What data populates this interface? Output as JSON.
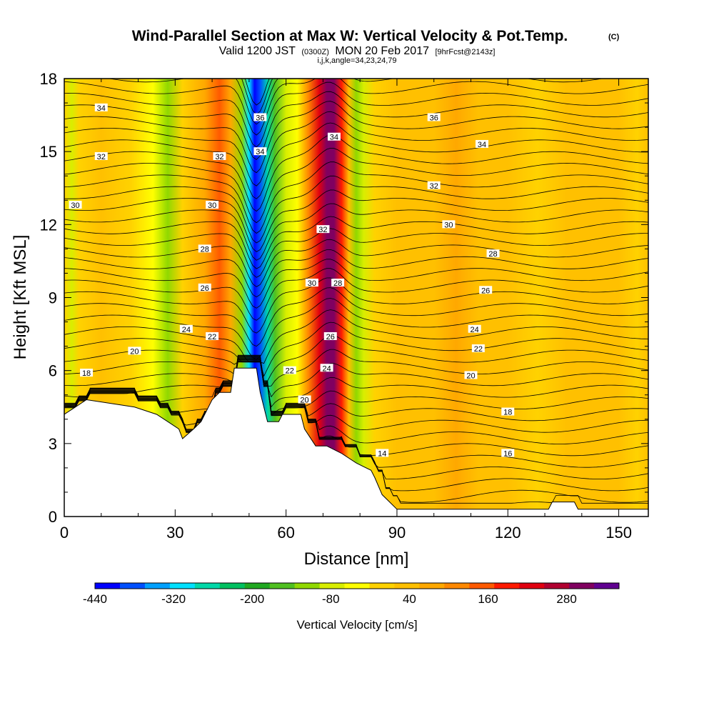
{
  "chart_data": {
    "type": "heatmap",
    "title": "Wind-Parallel Section at Max W: Vertical Velocity & Pot.Temp.",
    "title_unit": "(C)",
    "subtitle": {
      "valid_prefix": "Valid 1200 JST",
      "utc": "(0300Z)",
      "date": "MON 20 Feb 2017",
      "forecast": "[9hrFcst@2143z]"
    },
    "info_line": "i,j,k,angle=34,23,24,79",
    "xlabel": "Distance [nm]",
    "ylabel": "Height [Kft MSL]",
    "xlim": [
      0,
      158
    ],
    "ylim": [
      0,
      18
    ],
    "x_ticks": [
      "0",
      "30",
      "60",
      "90",
      "120",
      "150"
    ],
    "x_tick_values": [
      0,
      30,
      60,
      90,
      120,
      150
    ],
    "y_ticks": [
      "0",
      "3",
      "6",
      "9",
      "12",
      "15",
      "18"
    ],
    "y_tick_values": [
      0,
      3,
      6,
      9,
      12,
      15,
      18
    ],
    "colorbar": {
      "title": "Vertical Velocity [cm/s]",
      "min": -440,
      "max": 360,
      "step": 40,
      "labels": [
        "-440",
        "-320",
        "-200",
        "-80",
        "40",
        "160",
        "280"
      ],
      "label_values": [
        -440,
        -320,
        -200,
        -80,
        40,
        160,
        280
      ],
      "colors": [
        "#0000ff",
        "#0050ff",
        "#00a0ff",
        "#00e0ff",
        "#00d8a8",
        "#00c060",
        "#20a820",
        "#50c020",
        "#90d800",
        "#d8ee00",
        "#ffff00",
        "#ffd200",
        "#ffc000",
        "#ffa800",
        "#ff8800",
        "#ff5a00",
        "#ff1a00",
        "#e00010",
        "#b00030",
        "#800060",
        "#600090"
      ]
    },
    "vertical_velocity_columns": [
      {
        "x": 0,
        "w": 20
      },
      {
        "x": 2,
        "w": -60
      },
      {
        "x": 4,
        "w": 20
      },
      {
        "x": 10,
        "w": 40
      },
      {
        "x": 18,
        "w": 20
      },
      {
        "x": 24,
        "w": -40
      },
      {
        "x": 28,
        "w": -120
      },
      {
        "x": 32,
        "w": 20
      },
      {
        "x": 38,
        "w": 80
      },
      {
        "x": 42,
        "w": 160
      },
      {
        "x": 45,
        "w": 80
      },
      {
        "x": 48,
        "w": -100
      },
      {
        "x": 50,
        "w": -300
      },
      {
        "x": 51.5,
        "w": -420
      },
      {
        "x": 53,
        "w": -400
      },
      {
        "x": 55,
        "w": -260
      },
      {
        "x": 57,
        "w": -150
      },
      {
        "x": 60,
        "w": -60
      },
      {
        "x": 63,
        "w": -20
      },
      {
        "x": 66,
        "w": 120
      },
      {
        "x": 69,
        "w": 240
      },
      {
        "x": 71,
        "w": 320
      },
      {
        "x": 73,
        "w": 330
      },
      {
        "x": 75,
        "w": 200
      },
      {
        "x": 77,
        "w": 60
      },
      {
        "x": 79,
        "w": -120
      },
      {
        "x": 81,
        "w": -80
      },
      {
        "x": 84,
        "w": 20
      },
      {
        "x": 90,
        "w": 40
      },
      {
        "x": 100,
        "w": 60
      },
      {
        "x": 106,
        "w": 90
      },
      {
        "x": 112,
        "w": 50
      },
      {
        "x": 120,
        "w": 40
      },
      {
        "x": 128,
        "w": 20
      },
      {
        "x": 136,
        "w": 40
      },
      {
        "x": 143,
        "w": 60
      },
      {
        "x": 150,
        "w": 40
      },
      {
        "x": 155,
        "w": 20
      },
      {
        "x": 158,
        "w": 40
      }
    ],
    "terrain": [
      [
        0,
        4.2
      ],
      [
        3,
        4.5
      ],
      [
        6,
        4.8
      ],
      [
        19,
        4.5
      ],
      [
        25,
        4.2
      ],
      [
        28,
        3.9
      ],
      [
        31,
        3.6
      ],
      [
        32,
        3.2
      ],
      [
        35,
        3.6
      ],
      [
        37,
        3.9
      ],
      [
        40,
        4.8
      ],
      [
        42,
        5.1
      ],
      [
        45,
        5.1
      ],
      [
        46,
        6.1
      ],
      [
        52,
        6.1
      ],
      [
        53,
        5.1
      ],
      [
        55,
        3.9
      ],
      [
        58,
        3.9
      ],
      [
        59,
        4.2
      ],
      [
        64,
        4.2
      ],
      [
        65,
        3.6
      ],
      [
        68,
        2.9
      ],
      [
        71,
        2.9
      ],
      [
        75,
        2.6
      ],
      [
        79,
        2.2
      ],
      [
        83,
        1.9
      ],
      [
        84,
        1.6
      ],
      [
        86,
        0.9
      ],
      [
        88,
        0.6
      ],
      [
        90,
        0.3
      ],
      [
        131,
        0.3
      ],
      [
        132,
        0.6
      ],
      [
        138,
        0.6
      ],
      [
        139,
        0.3
      ],
      [
        158,
        0.3
      ]
    ],
    "theta_labels": [
      {
        "text": "34",
        "x": 10,
        "y": 16.8
      },
      {
        "text": "32",
        "x": 10,
        "y": 14.8
      },
      {
        "text": "30",
        "x": 3,
        "y": 12.8
      },
      {
        "text": "36",
        "x": 100,
        "y": 16.4
      },
      {
        "text": "34",
        "x": 113,
        "y": 15.3
      },
      {
        "text": "32",
        "x": 100,
        "y": 13.6
      },
      {
        "text": "30",
        "x": 104,
        "y": 12.0
      },
      {
        "text": "28",
        "x": 116,
        "y": 10.8
      },
      {
        "text": "26",
        "x": 114,
        "y": 9.3
      },
      {
        "text": "24",
        "x": 111,
        "y": 7.7
      },
      {
        "text": "22",
        "x": 112,
        "y": 6.9
      },
      {
        "text": "20",
        "x": 110,
        "y": 5.8
      },
      {
        "text": "18",
        "x": 120,
        "y": 4.3
      },
      {
        "text": "16",
        "x": 120,
        "y": 2.6
      },
      {
        "text": "14",
        "x": 86,
        "y": 2.6
      },
      {
        "text": "36",
        "x": 53,
        "y": 16.4
      },
      {
        "text": "34",
        "x": 53,
        "y": 15.0
      },
      {
        "text": "34",
        "x": 73,
        "y": 15.6
      },
      {
        "text": "32",
        "x": 42,
        "y": 14.8
      },
      {
        "text": "30",
        "x": 40,
        "y": 12.8
      },
      {
        "text": "32",
        "x": 70,
        "y": 11.8
      },
      {
        "text": "28",
        "x": 38,
        "y": 11.0
      },
      {
        "text": "26",
        "x": 38,
        "y": 9.4
      },
      {
        "text": "30",
        "x": 67,
        "y": 9.6
      },
      {
        "text": "28",
        "x": 74,
        "y": 9.6
      },
      {
        "text": "24",
        "x": 33,
        "y": 7.7
      },
      {
        "text": "22",
        "x": 40,
        "y": 7.4
      },
      {
        "text": "26",
        "x": 72,
        "y": 7.4
      },
      {
        "text": "24",
        "x": 71,
        "y": 6.1
      },
      {
        "text": "20",
        "x": 19,
        "y": 6.8
      },
      {
        "text": "22",
        "x": 61,
        "y": 6.0
      },
      {
        "text": "18",
        "x": 6,
        "y": 5.9
      },
      {
        "text": "20",
        "x": 65,
        "y": 4.8
      }
    ]
  }
}
